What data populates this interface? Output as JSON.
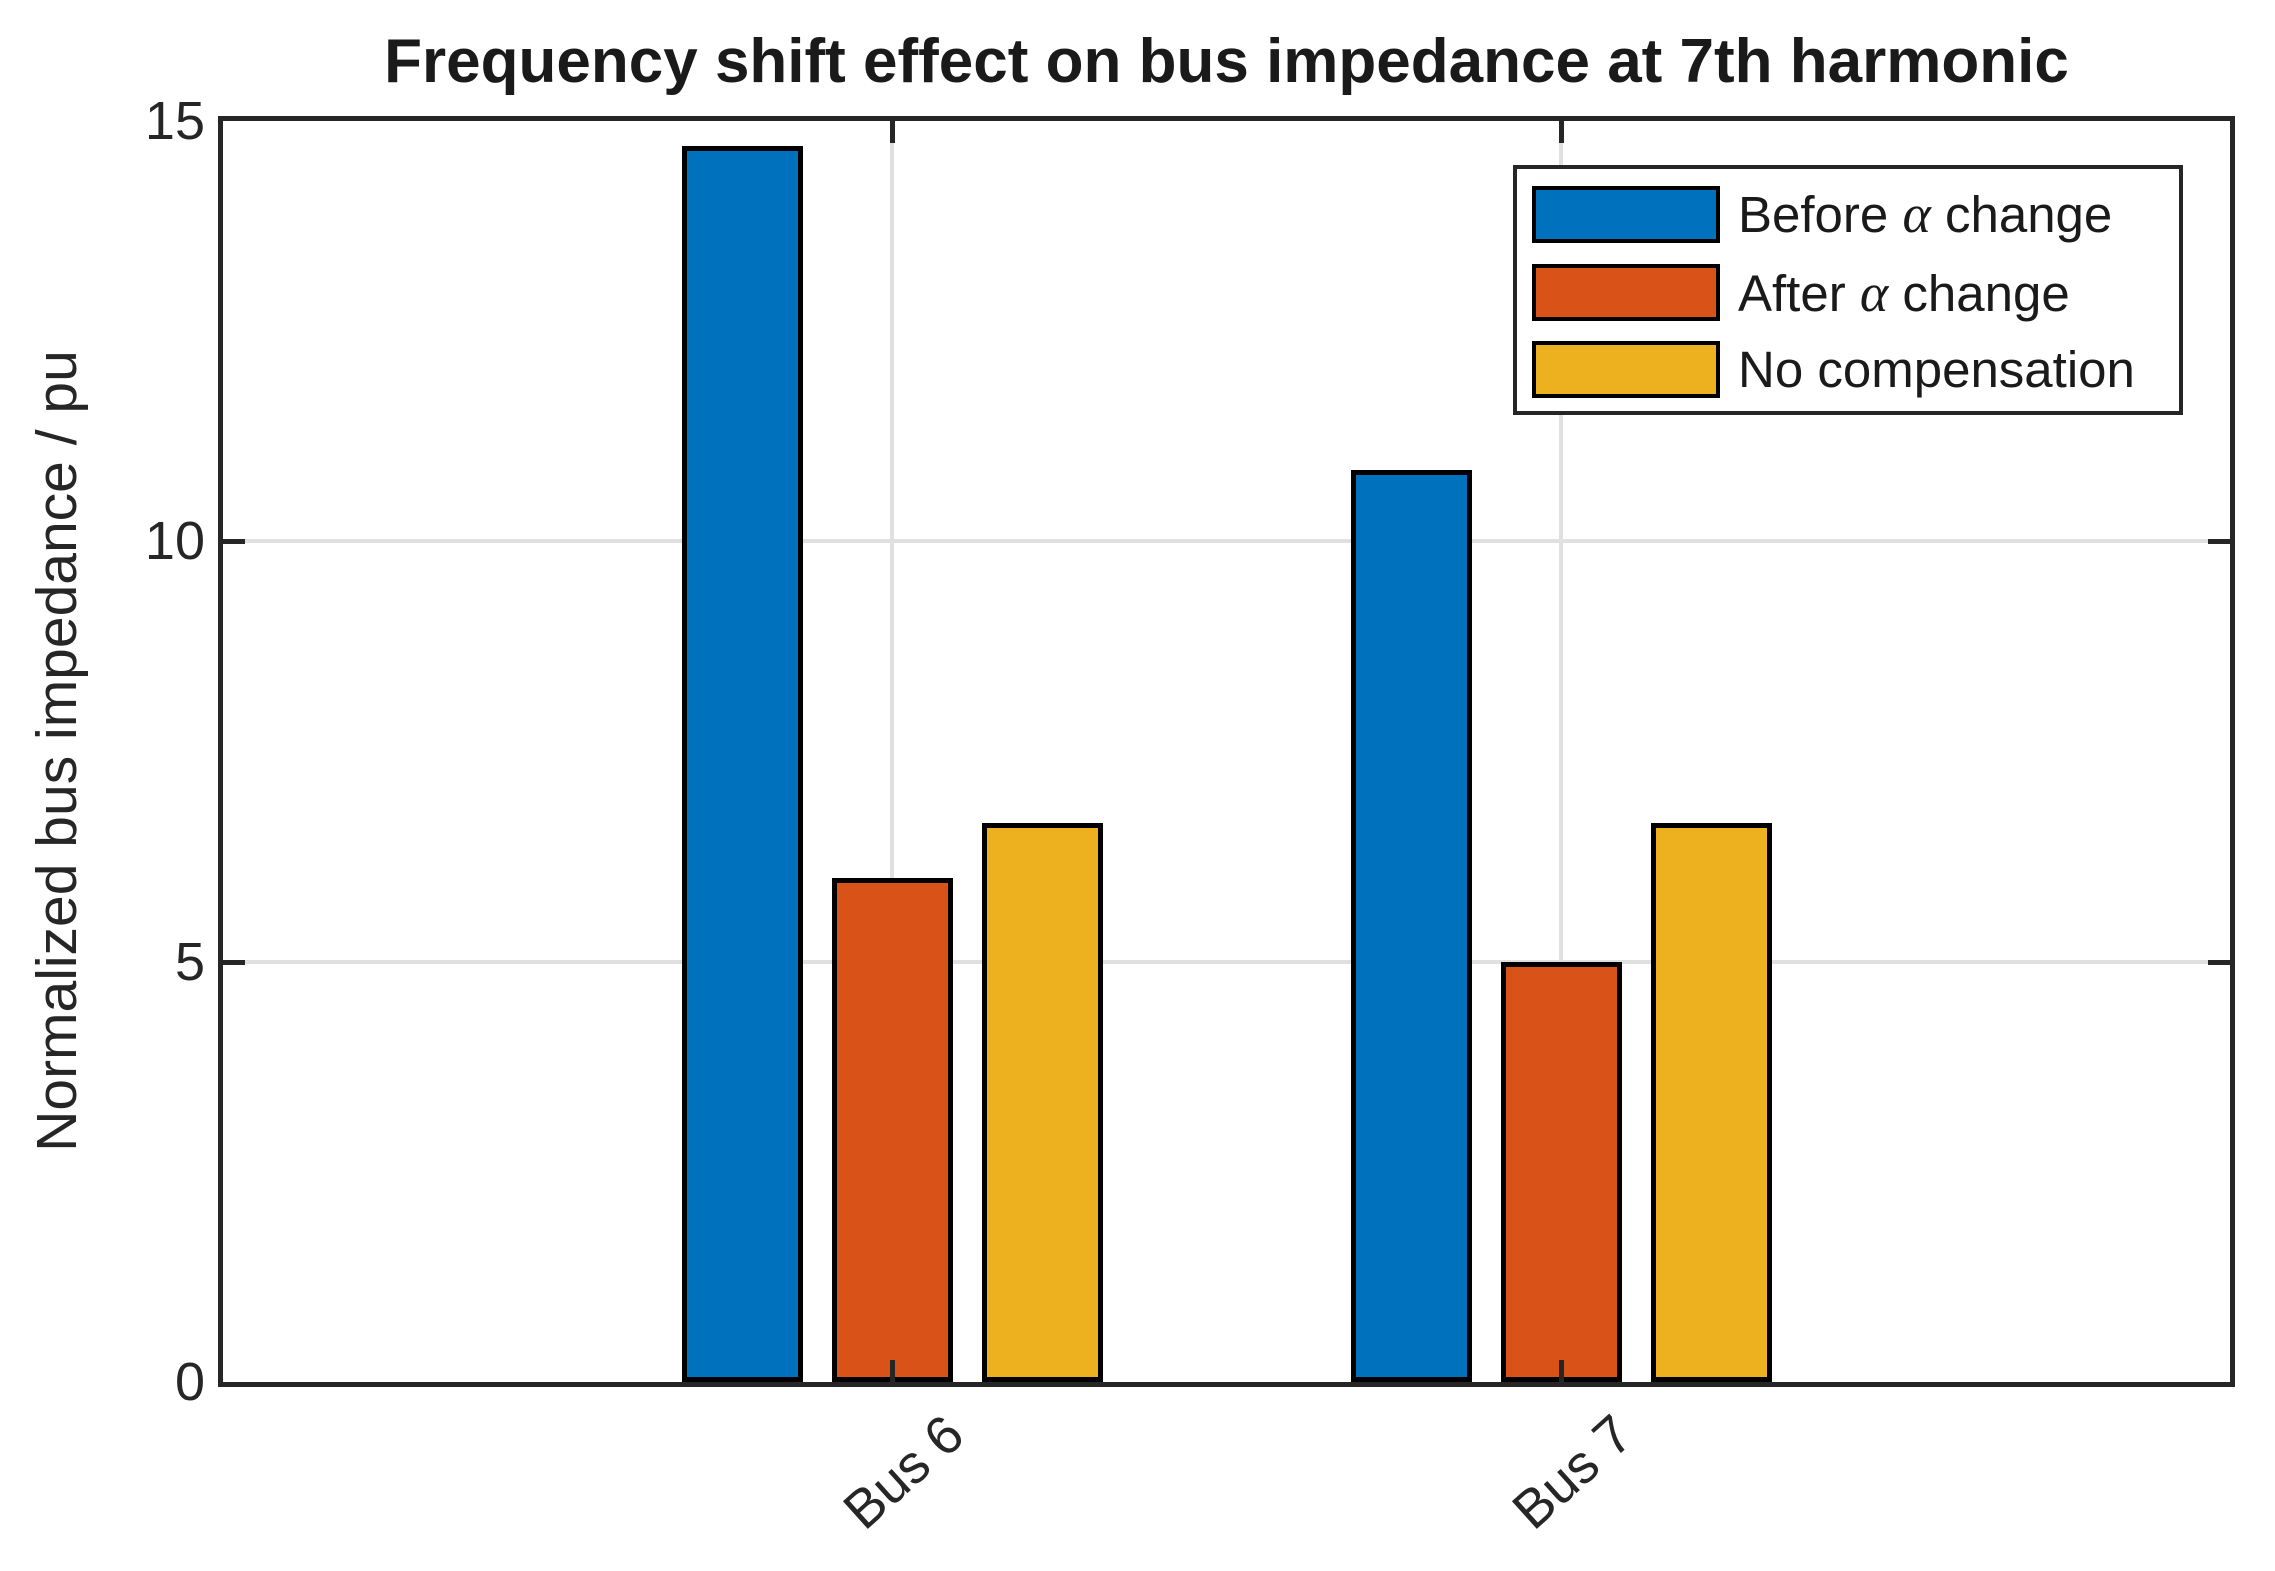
{
  "figure": {
    "background": "#ffffff",
    "axis_color": "#262626",
    "grid_color": "#e0e0e0",
    "bar_edge_color": "#000000"
  },
  "chart_data": {
    "type": "bar",
    "title": "Frequency shift effect on bus impedance at 7th harmonic",
    "xlabel": "",
    "ylabel": "Normalized bus impedance / pu",
    "categories": [
      "Bus 6",
      "Bus 7"
    ],
    "series": [
      {
        "name": "Before α change",
        "color": "#0072BD",
        "values": [
          14.7,
          10.85
        ]
      },
      {
        "name": "After α change",
        "color": "#D95319",
        "values": [
          6.0,
          5.0
        ]
      },
      {
        "name": "No compensation",
        "color": "#EDB120",
        "values": [
          6.65,
          6.65
        ]
      }
    ],
    "ylim": [
      0,
      15
    ],
    "yticks": [
      0,
      5,
      10,
      15
    ],
    "grid": true,
    "legend_position": "northeast",
    "tick_direction": "in"
  }
}
